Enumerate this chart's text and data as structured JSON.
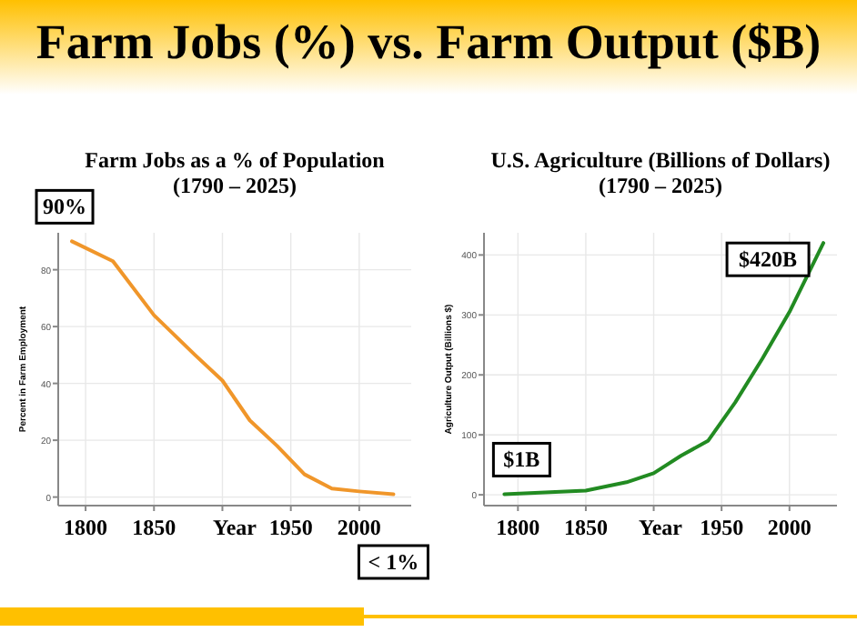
{
  "chart_data": [
    {
      "type": "other",
      "title": "Farm Jobs (%) vs. Farm Output ($B)"
    },
    {
      "type": "line",
      "title": "Farm Jobs as a % of Population\n(1790 – 2025)",
      "xlabel": "Year",
      "ylabel": "Percent in Farm Employment",
      "x": [
        1790,
        1820,
        1850,
        1880,
        1900,
        1920,
        1940,
        1960,
        1980,
        2000,
        2025
      ],
      "series": [
        {
          "color": "#f0962a",
          "values": [
            90,
            83,
            64,
            50,
            41,
            27,
            18,
            8,
            3,
            2,
            1
          ]
        }
      ],
      "xlim": [
        1780,
        2038
      ],
      "xticks": [
        1800,
        1850,
        {
          "value": 1900,
          "label": null
        },
        1950,
        2000
      ],
      "ylim": [
        -3,
        93
      ],
      "yticks": [
        0,
        20,
        40,
        60,
        80
      ],
      "grid": true,
      "marker": "none",
      "line_style": "solid",
      "annotations": [
        "90%",
        "< 1%"
      ]
    },
    {
      "type": "line",
      "title": "U.S. Agriculture (Billions of Dollars)\n(1790 – 2025)",
      "xlabel": "Year",
      "ylabel": "Agriculture Output (Billions $)",
      "x": [
        1790,
        1850,
        1880,
        1900,
        1920,
        1940,
        1960,
        1980,
        2000,
        2025
      ],
      "series": [
        {
          "color": "#228b22",
          "values": [
            1,
            7,
            21,
            36,
            65,
            90,
            154,
            227,
            305,
            420
          ]
        }
      ],
      "xlim": [
        1775,
        2035
      ],
      "xticks": [
        1800,
        1850,
        {
          "value": 1900,
          "label": null
        },
        1950,
        2000
      ],
      "ylim": [
        -18,
        437
      ],
      "yticks": [
        0,
        100,
        200,
        300,
        400
      ],
      "grid": true,
      "marker": "none",
      "line_style": "solid",
      "annotations": [
        "$1B",
        "$420B"
      ]
    }
  ]
}
